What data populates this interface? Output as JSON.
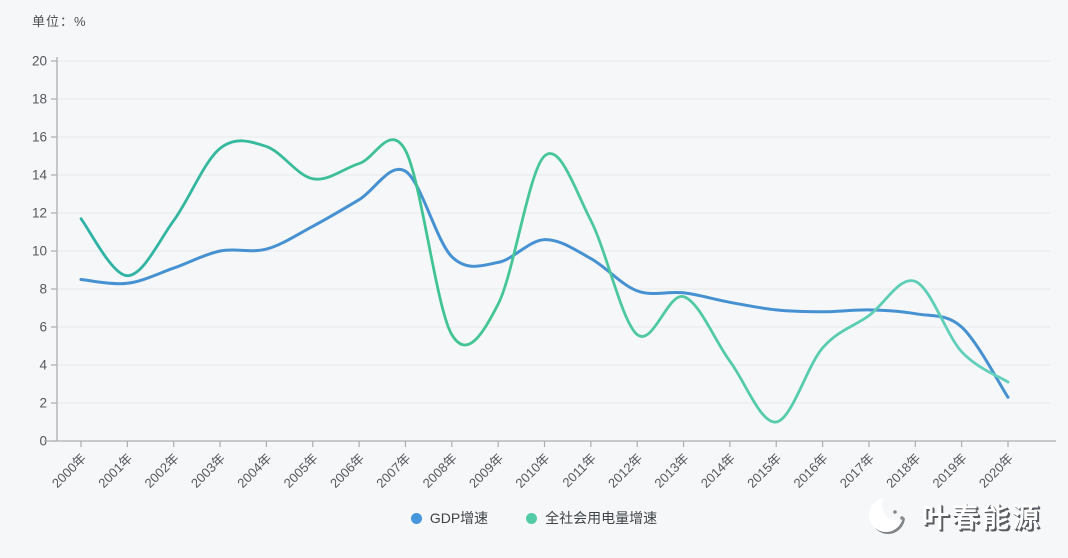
{
  "unit_label": "单位：%",
  "colors": {
    "background": "#f6f7f8",
    "axis_line": "#aaaeb2",
    "grid_line": "#e7e9eb",
    "tick_label": "#54585c",
    "gdp_line": "#4691d1",
    "electricity_line_start": "#2eb1a6",
    "electricity_line_mid": "#42c592",
    "electricity_line_end": "#64d0bf"
  },
  "chart_data": {
    "type": "line",
    "smooth": true,
    "title": "",
    "ylabel": "单位：%",
    "xlabel": "",
    "ylim": [
      0,
      20
    ],
    "yticks": [
      0,
      2,
      4,
      6,
      8,
      10,
      12,
      14,
      16,
      18,
      20
    ],
    "grid": true,
    "legend_position": "bottom-center",
    "categories": [
      "2000年",
      "2001年",
      "2002年",
      "2003年",
      "2004年",
      "2005年",
      "2006年",
      "2007年",
      "2008年",
      "2009年",
      "2010年",
      "2011年",
      "2012年",
      "2013年",
      "2014年",
      "2015年",
      "2016年",
      "2017年",
      "2018年",
      "2019年",
      "2020年"
    ],
    "series": [
      {
        "name": "GDP增速",
        "color": "#4691d1",
        "values": [
          8.5,
          8.3,
          9.1,
          10.0,
          10.1,
          11.3,
          12.7,
          14.2,
          9.7,
          9.4,
          10.6,
          9.6,
          7.9,
          7.8,
          7.3,
          6.9,
          6.8,
          6.9,
          6.7,
          6.0,
          2.3
        ]
      },
      {
        "name": "全社会用电量增速",
        "color": "#42c592",
        "values": [
          11.7,
          8.7,
          11.6,
          15.4,
          15.5,
          13.8,
          14.6,
          15.3,
          5.6,
          7.2,
          15.0,
          11.6,
          5.6,
          7.6,
          4.2,
          1.0,
          4.9,
          6.6,
          8.4,
          4.7,
          3.1
        ]
      }
    ]
  },
  "legend": {
    "items": [
      {
        "label": "GDP增速",
        "color": "#4596db"
      },
      {
        "label": "全社会用电量增速",
        "color": "#52cba6"
      }
    ]
  },
  "watermark": {
    "icon": "crescent-moon-icon",
    "text": "叶春能源"
  }
}
